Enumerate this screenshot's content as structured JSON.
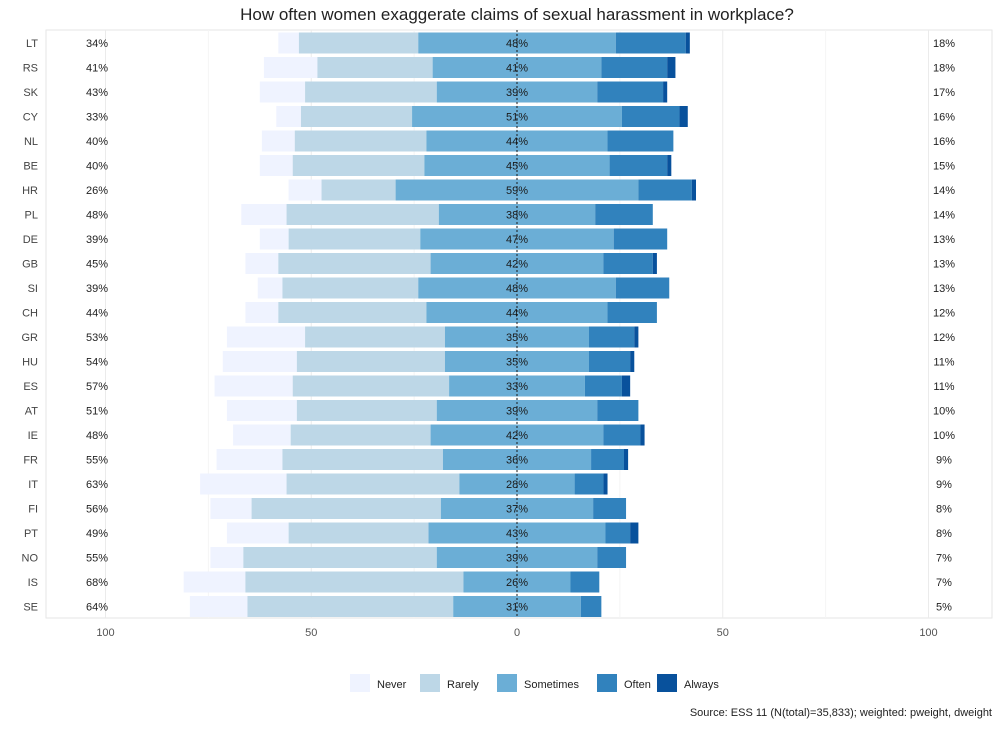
{
  "chart_data": {
    "type": "bar",
    "subtype": "diverging-stacked-horizontal",
    "title": "How often women exaggerate claims of sexual harassment in workplace?",
    "source": "Source: ESS 11 (N(total)=35,833); weighted: pweight, dweight",
    "xlim": [
      -100,
      100
    ],
    "xticks": [
      {
        "value": -100,
        "label": "100"
      },
      {
        "value": -50,
        "label": "50"
      },
      {
        "value": 0,
        "label": "0"
      },
      {
        "value": 50,
        "label": "50"
      },
      {
        "value": 100,
        "label": "100"
      }
    ],
    "legend_position": "bottom",
    "legend": [
      "Never",
      "Rarely",
      "Sometimes",
      "Often",
      "Always"
    ],
    "colors": {
      "Never": "#eff3ff",
      "Rarely": "#bdd7e7",
      "Sometimes": "#6baed6",
      "Often": "#3182bd",
      "Always": "#08519c"
    },
    "categories": [
      "LT",
      "RS",
      "SK",
      "CY",
      "NL",
      "BE",
      "HR",
      "PL",
      "DE",
      "GB",
      "SI",
      "CH",
      "GR",
      "HU",
      "ES",
      "AT",
      "IE",
      "FR",
      "IT",
      "FI",
      "PT",
      "NO",
      "IS",
      "SE"
    ],
    "series": [
      {
        "name": "Never",
        "values": [
          5,
          13,
          11,
          6,
          8,
          8,
          8,
          11,
          7,
          8,
          6,
          8,
          19,
          18,
          19,
          17,
          14,
          16,
          21,
          10,
          15,
          8,
          15,
          14
        ]
      },
      {
        "name": "Rarely",
        "values": [
          29,
          28,
          32,
          27,
          32,
          32,
          18,
          37,
          32,
          37,
          33,
          36,
          34,
          36,
          38,
          34,
          34,
          39,
          42,
          46,
          34,
          47,
          53,
          50
        ]
      },
      {
        "name": "Sometimes",
        "values": [
          48,
          41,
          39,
          51,
          44,
          45,
          59,
          38,
          47,
          42,
          48,
          44,
          35,
          35,
          33,
          39,
          42,
          36,
          28,
          37,
          43,
          39,
          26,
          31
        ]
      },
      {
        "name": "Often",
        "values": [
          17,
          16,
          16,
          14,
          16,
          14,
          13,
          14,
          13,
          12,
          13,
          12,
          11,
          10,
          9,
          10,
          9,
          8,
          7,
          8,
          6,
          7,
          7,
          5
        ]
      },
      {
        "name": "Always",
        "values": [
          1,
          2,
          1,
          2,
          0,
          1,
          1,
          0,
          0,
          1,
          0,
          0,
          1,
          1,
          2,
          0,
          1,
          1,
          1,
          0,
          2,
          0,
          0,
          0
        ]
      }
    ],
    "left_labels": [
      "34%",
      "41%",
      "43%",
      "33%",
      "40%",
      "40%",
      "26%",
      "48%",
      "39%",
      "45%",
      "39%",
      "44%",
      "53%",
      "54%",
      "57%",
      "51%",
      "48%",
      "55%",
      "63%",
      "56%",
      "49%",
      "55%",
      "68%",
      "64%"
    ],
    "center_labels": [
      "48%",
      "41%",
      "39%",
      "51%",
      "44%",
      "45%",
      "59%",
      "38%",
      "47%",
      "42%",
      "48%",
      "44%",
      "35%",
      "35%",
      "33%",
      "39%",
      "42%",
      "36%",
      "28%",
      "37%",
      "43%",
      "39%",
      "26%",
      "31%"
    ],
    "right_labels": [
      "18%",
      "18%",
      "17%",
      "16%",
      "16%",
      "15%",
      "14%",
      "14%",
      "13%",
      "13%",
      "13%",
      "12%",
      "12%",
      "11%",
      "11%",
      "10%",
      "10%",
      "9%",
      "9%",
      "8%",
      "8%",
      "7%",
      "7%",
      "5%"
    ]
  }
}
